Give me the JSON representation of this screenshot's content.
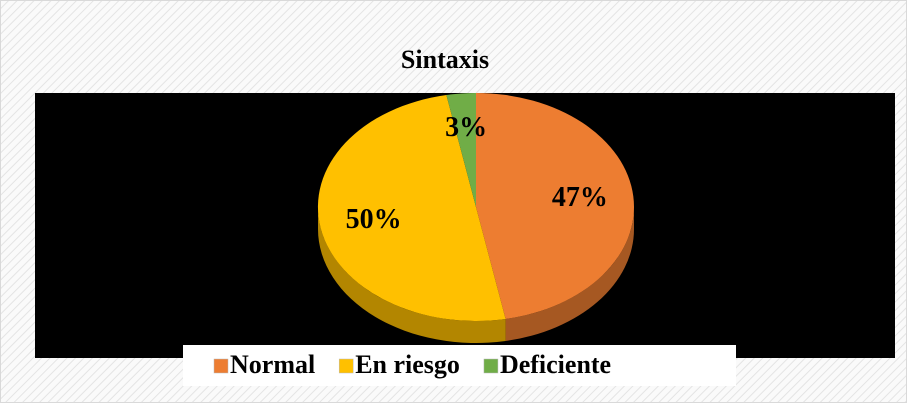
{
  "chart_data": {
    "type": "pie",
    "title": "Sintaxis",
    "categories": [
      "Normal",
      "En riesgo",
      "Deficiente"
    ],
    "values": [
      47,
      50,
      3
    ],
    "value_labels": [
      "47%",
      "50%",
      "3%"
    ],
    "colors": [
      "#ed7d31",
      "#ffc000",
      "#70ad47"
    ],
    "legend": "bottom"
  }
}
